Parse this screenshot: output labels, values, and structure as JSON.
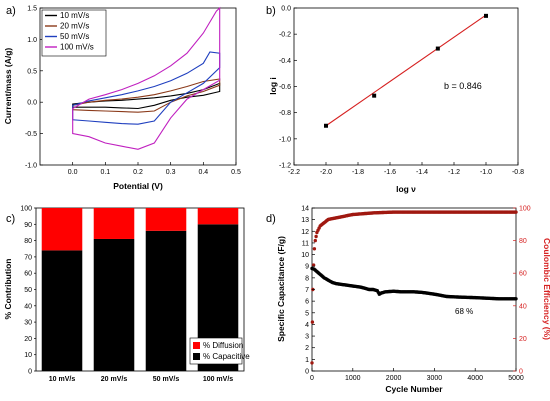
{
  "chart_data": [
    {
      "panel": "a)",
      "type": "line",
      "xlabel": "Potential (V)",
      "ylabel": "Current/mass (A/g)",
      "xlim": [
        -0.1,
        0.5
      ],
      "ylim": [
        -1.0,
        1.5
      ],
      "xticks": [
        "0.0",
        "0.1",
        "0.2",
        "0.3",
        "0.4",
        "0.5"
      ],
      "yticks": [
        "-1.0",
        "-0.5",
        "0.0",
        "0.5",
        "1.0",
        "1.5"
      ],
      "legend_position": "top-left",
      "grid": false,
      "series": [
        {
          "name": "10 mV/s",
          "color": "#000000",
          "x": [
            0.0,
            0.05,
            0.1,
            0.15,
            0.2,
            0.25,
            0.3,
            0.35,
            0.4,
            0.45,
            0.45,
            0.4,
            0.35,
            0.3,
            0.25,
            0.2,
            0.15,
            0.1,
            0.05,
            0.0,
            0.0
          ],
          "y": [
            -0.03,
            0.0,
            0.02,
            0.03,
            0.05,
            0.07,
            0.1,
            0.14,
            0.2,
            0.3,
            0.17,
            0.11,
            0.08,
            0.03,
            -0.05,
            -0.1,
            -0.09,
            -0.08,
            -0.08,
            -0.08,
            -0.03
          ]
        },
        {
          "name": "20 mV/s",
          "color": "#8b3a1a",
          "x": [
            0.0,
            0.05,
            0.1,
            0.15,
            0.2,
            0.25,
            0.3,
            0.35,
            0.4,
            0.45,
            0.45,
            0.4,
            0.35,
            0.3,
            0.25,
            0.2,
            0.15,
            0.1,
            0.05,
            0.0,
            0.0
          ],
          "y": [
            -0.05,
            0.0,
            0.03,
            0.05,
            0.08,
            0.12,
            0.18,
            0.25,
            0.33,
            0.37,
            0.27,
            0.17,
            0.1,
            0.0,
            -0.14,
            -0.16,
            -0.15,
            -0.14,
            -0.13,
            -0.12,
            -0.05
          ]
        },
        {
          "name": "50 mV/s",
          "color": "#1f3fbf",
          "x": [
            0.0,
            0.05,
            0.1,
            0.15,
            0.2,
            0.25,
            0.3,
            0.35,
            0.4,
            0.42,
            0.45,
            0.45,
            0.4,
            0.35,
            0.3,
            0.25,
            0.2,
            0.15,
            0.1,
            0.05,
            0.0,
            0.0
          ],
          "y": [
            -0.05,
            0.02,
            0.07,
            0.12,
            0.18,
            0.25,
            0.34,
            0.46,
            0.62,
            0.8,
            0.78,
            0.55,
            0.3,
            0.15,
            0.0,
            -0.3,
            -0.35,
            -0.34,
            -0.32,
            -0.3,
            -0.28,
            -0.05
          ]
        },
        {
          "name": "100 mV/s",
          "color": "#c020c0",
          "x": [
            0.0,
            0.05,
            0.1,
            0.15,
            0.2,
            0.25,
            0.3,
            0.35,
            0.4,
            0.44,
            0.45,
            0.45,
            0.4,
            0.35,
            0.3,
            0.25,
            0.2,
            0.15,
            0.1,
            0.05,
            0.0,
            0.0
          ],
          "y": [
            -0.1,
            0.05,
            0.12,
            0.2,
            0.3,
            0.42,
            0.58,
            0.78,
            1.1,
            1.45,
            1.5,
            0.35,
            0.2,
            0.05,
            -0.25,
            -0.65,
            -0.75,
            -0.7,
            -0.65,
            -0.55,
            -0.5,
            -0.1
          ]
        }
      ]
    },
    {
      "panel": "b)",
      "type": "scatter",
      "xlabel": "log ν",
      "ylabel": "log i",
      "xlim": [
        -2.2,
        -0.8
      ],
      "ylim": [
        -1.2,
        0.0
      ],
      "xticks": [
        "-2.2",
        "-2.0",
        "-1.8",
        "-1.6",
        "-1.4",
        "-1.2",
        "-1.0",
        "-0.8"
      ],
      "yticks": [
        "-1.2",
        "-1.0",
        "-0.8",
        "-0.6",
        "-0.4",
        "-0.2",
        "0.0"
      ],
      "annotation": "b = 0.846",
      "grid": false,
      "points": {
        "x": [
          -2.0,
          -1.699,
          -1.301,
          -1.0
        ],
        "y": [
          -0.9,
          -0.67,
          -0.31,
          -0.06
        ]
      },
      "fit": {
        "x": [
          -2.0,
          -1.0
        ],
        "y": [
          -0.9,
          -0.054
        ],
        "color": "#d62020"
      }
    },
    {
      "panel": "c)",
      "type": "bar",
      "stacked": true,
      "ylabel": "% Contribution",
      "ylim": [
        0,
        100
      ],
      "yticks": [
        "0",
        "10",
        "20",
        "30",
        "40",
        "50",
        "60",
        "70",
        "80",
        "90",
        "100"
      ],
      "categories": [
        "10 mV/s",
        "20 mV/s",
        "50 mV/s",
        "100 mV/s"
      ],
      "legend_position": "bottom-right",
      "grid": false,
      "series": [
        {
          "name": "% Capacitive",
          "color": "#000000",
          "values": [
            74,
            81,
            86,
            90
          ]
        },
        {
          "name": "% Diffusion",
          "color": "#ff0000",
          "values": [
            26,
            19,
            14,
            10
          ]
        }
      ]
    },
    {
      "panel": "d)",
      "type": "scatter",
      "xlabel": "Cycle Number",
      "ylabel": "Specific Capacitance (F/g)",
      "y2label": "Coulombic Efficiency (%)",
      "xlim": [
        0,
        5000
      ],
      "ylim": [
        0,
        14
      ],
      "y2lim": [
        0,
        100
      ],
      "xticks": [
        "0",
        "1000",
        "2000",
        "3000",
        "4000",
        "5000"
      ],
      "yticks": [
        "0",
        "1",
        "2",
        "3",
        "4",
        "5",
        "6",
        "7",
        "8",
        "9",
        "10",
        "11",
        "12",
        "13",
        "14"
      ],
      "y2ticks": [
        "0",
        "20",
        "40",
        "60",
        "80",
        "100"
      ],
      "annotation": "68 %",
      "grid": false,
      "series": [
        {
          "name": "Specific Capacitance",
          "axis": "left",
          "color": "#000000",
          "x": [
            0,
            50,
            100,
            200,
            300,
            400,
            500,
            600,
            700,
            800,
            1000,
            1200,
            1400,
            1500,
            1600,
            1650,
            1700,
            1800,
            2000,
            2200,
            2500,
            2700,
            2800,
            3000,
            3300,
            3600,
            4000,
            4300,
            4600,
            5000
          ],
          "y": [
            8.8,
            8.75,
            8.6,
            8.3,
            8.0,
            7.8,
            7.6,
            7.5,
            7.45,
            7.4,
            7.3,
            7.2,
            7.0,
            7.0,
            6.9,
            6.6,
            6.7,
            6.8,
            6.85,
            6.8,
            6.8,
            6.75,
            6.7,
            6.6,
            6.4,
            6.35,
            6.3,
            6.25,
            6.2,
            6.2
          ]
        },
        {
          "name": "Coulombic Efficiency",
          "axis": "right",
          "color": "#a01810",
          "x": [
            0,
            10,
            20,
            40,
            60,
            80,
            120,
            200,
            300,
            400,
            600,
            800,
            1000,
            1500,
            2000,
            2500,
            3000,
            3500,
            4000,
            4500,
            5000
          ],
          "y": [
            5,
            30,
            50,
            65,
            75,
            80,
            85,
            89,
            91,
            93,
            94,
            95,
            96,
            97,
            97.5,
            97.5,
            97.5,
            97.5,
            97.5,
            97.5,
            97.5
          ]
        }
      ]
    }
  ]
}
